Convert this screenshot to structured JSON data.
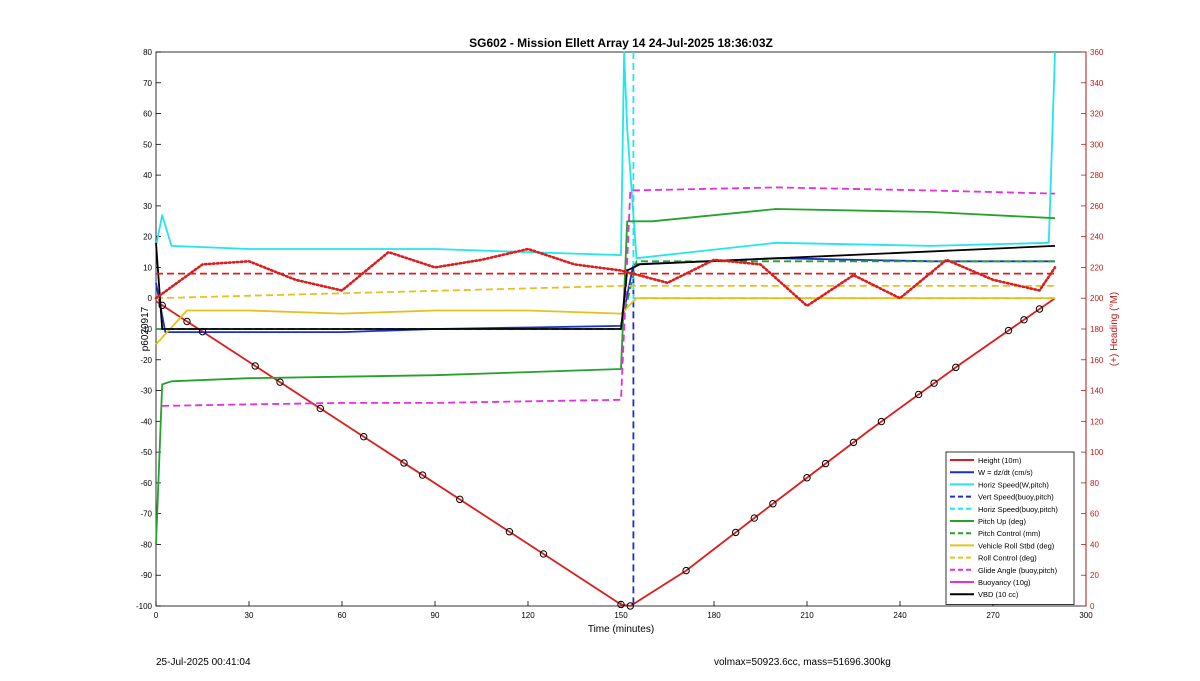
{
  "chart_data": {
    "type": "line",
    "title": "SG602 - Mission Ellett Array 14 24-Jul-2025 18:36:03Z",
    "xlabel": "Time (minutes)",
    "ylabel": "p6020917",
    "y2label": "(+) Heading (°M)",
    "xlim": [
      0,
      300
    ],
    "ylim": [
      -100,
      80
    ],
    "y2lim": [
      0,
      360
    ],
    "xticks": [
      "0",
      "30",
      "60",
      "90",
      "120",
      "150",
      "180",
      "210",
      "240",
      "270",
      "300"
    ],
    "yticks": [
      "80",
      "70",
      "60",
      "50",
      "40",
      "30",
      "20",
      "10",
      "0",
      "-10",
      "-20",
      "-30",
      "-40",
      "-50",
      "-60",
      "-70",
      "-80",
      "-90",
      "-100"
    ],
    "y2ticks": [
      "360",
      "340",
      "320",
      "300",
      "280",
      "260",
      "240",
      "220",
      "200",
      "180",
      "160",
      "140",
      "120",
      "100",
      "80",
      "60",
      "40",
      "20",
      "0"
    ],
    "grid": false,
    "legend_position": "lower-right",
    "legend": [
      {
        "label": "Height (10m)",
        "color": "#dd1c1c",
        "style": "solid"
      },
      {
        "label": "W = dz/dt (cm/s)",
        "color": "#1c2fcc",
        "style": "solid"
      },
      {
        "label": "Horiz Speed(W,pitch)",
        "color": "#22e6ea",
        "style": "solid"
      },
      {
        "label": "Vert Speed(buoy,pitch)",
        "color": "#1c2fcc",
        "style": "dashed"
      },
      {
        "label": "Horiz Speed(buoy,pitch)",
        "color": "#22e6ea",
        "style": "dashed"
      },
      {
        "label": "Pitch Up (deg)",
        "color": "#22a32a",
        "style": "solid"
      },
      {
        "label": "Pitch Control (mm)",
        "color": "#22a32a",
        "style": "dashed"
      },
      {
        "label": "Vehicle Roll Stbd (deg)",
        "color": "#e3c220",
        "style": "solid"
      },
      {
        "label": "Roll Control (deg)",
        "color": "#e3c220",
        "style": "dashed"
      },
      {
        "label": "Glide Angle (buoy,pitch)",
        "color": "#e32ee3",
        "style": "dashed"
      },
      {
        "label": "Buoyancy (10g)",
        "color": "#e32ee3",
        "style": "solid"
      },
      {
        "label": "VBD (10 cc)",
        "color": "#000000",
        "style": "solid"
      }
    ],
    "series": [
      {
        "name": "Height (10m)",
        "axis": "left",
        "x": [
          0,
          150,
          153,
          171,
          200,
          230,
          260,
          290
        ],
        "y": [
          -1,
          -99.5,
          -100,
          -88.5,
          -66,
          -43,
          -21,
          0
        ]
      },
      {
        "name": "W = dz/dt (cm/s)",
        "axis": "left",
        "x": [
          0,
          3,
          30,
          60,
          90,
          120,
          150,
          154,
          200,
          250,
          290
        ],
        "y": [
          5,
          -11,
          -11,
          -11,
          -10,
          -9.5,
          -9,
          11,
          13,
          12,
          12
        ]
      },
      {
        "name": "Horiz Speed(W,pitch)",
        "axis": "left",
        "x": [
          0,
          2,
          5,
          30,
          60,
          90,
          120,
          150,
          151,
          152,
          155,
          200,
          250,
          288,
          290
        ],
        "y": [
          17,
          27,
          17,
          16,
          16,
          16,
          15,
          14,
          80,
          55,
          13,
          18,
          17,
          18,
          80
        ]
      },
      {
        "name": "Vert Speed(buoy,pitch)",
        "axis": "left",
        "x": [
          154,
          154
        ],
        "y": [
          10,
          -100
        ]
      },
      {
        "name": "Horiz Speed(buoy,pitch)",
        "axis": "left",
        "x": [
          154,
          154,
          155,
          290
        ],
        "y": [
          80,
          0,
          0,
          0
        ]
      },
      {
        "name": "Pitch Up (deg)",
        "axis": "left",
        "x": [
          0,
          2,
          5,
          30,
          60,
          90,
          120,
          150,
          152,
          160,
          200,
          250,
          290
        ],
        "y": [
          -80,
          -28,
          -27,
          -26,
          -25.5,
          -25,
          -24,
          -23,
          25,
          25,
          29,
          28,
          26
        ]
      },
      {
        "name": "Pitch Control (mm)",
        "axis": "left",
        "x": [
          0,
          150,
          155,
          290
        ],
        "y": [
          -10,
          -10,
          12,
          12
        ]
      },
      {
        "name": "Vehicle Roll Stbd (deg)",
        "axis": "left",
        "x": [
          0,
          10,
          30,
          60,
          90,
          120,
          150,
          155,
          200,
          250,
          290
        ],
        "y": [
          -15,
          -4,
          -4,
          -5,
          -4,
          -4,
          -5,
          0,
          0,
          0,
          0
        ]
      },
      {
        "name": "Roll Control (deg)",
        "axis": "left",
        "x": [
          0,
          150,
          155,
          290
        ],
        "y": [
          0,
          4,
          4,
          4
        ]
      },
      {
        "name": "Glide Angle (buoy,pitch)",
        "axis": "left",
        "x": [
          2,
          30,
          60,
          90,
          120,
          150,
          153,
          200,
          250,
          290
        ],
        "y": [
          -35,
          -34.5,
          -34,
          -34,
          -33.5,
          -33,
          35,
          36,
          35,
          34
        ]
      },
      {
        "name": "Buoyancy (10g)",
        "axis": "left",
        "x": [],
        "y": []
      },
      {
        "name": "VBD (10 cc)",
        "axis": "left",
        "x": [
          0,
          2,
          150,
          152,
          156,
          290
        ],
        "y": [
          18,
          -10,
          -10,
          9,
          11,
          17
        ]
      },
      {
        "name": "Heading",
        "axis": "right",
        "x": [
          0,
          15,
          30,
          45,
          60,
          75,
          90,
          105,
          120,
          135,
          150,
          165,
          180,
          195,
          210,
          225,
          240,
          255,
          270,
          285,
          290
        ],
        "y": [
          200,
          222,
          224,
          212,
          205,
          230,
          220,
          225,
          232,
          222,
          218,
          210,
          225,
          222,
          195,
          215,
          200,
          225,
          212,
          205,
          220
        ]
      },
      {
        "name": "Heading Control",
        "axis": "right",
        "x": [
          0,
          290
        ],
        "y": [
          216,
          216
        ]
      }
    ],
    "markers_on": "Height (10m)",
    "marker_x": [
      2,
      10,
      15,
      32,
      40,
      53,
      67,
      80,
      86,
      98,
      114,
      125,
      150,
      153,
      171,
      187,
      193,
      199,
      210,
      216,
      225,
      234,
      246,
      251,
      258,
      275,
      280,
      285
    ]
  },
  "footer": {
    "left": "25-Jul-2025 00:41:04",
    "right": "volmax=50923.6cc, mass=51696.300kg"
  }
}
